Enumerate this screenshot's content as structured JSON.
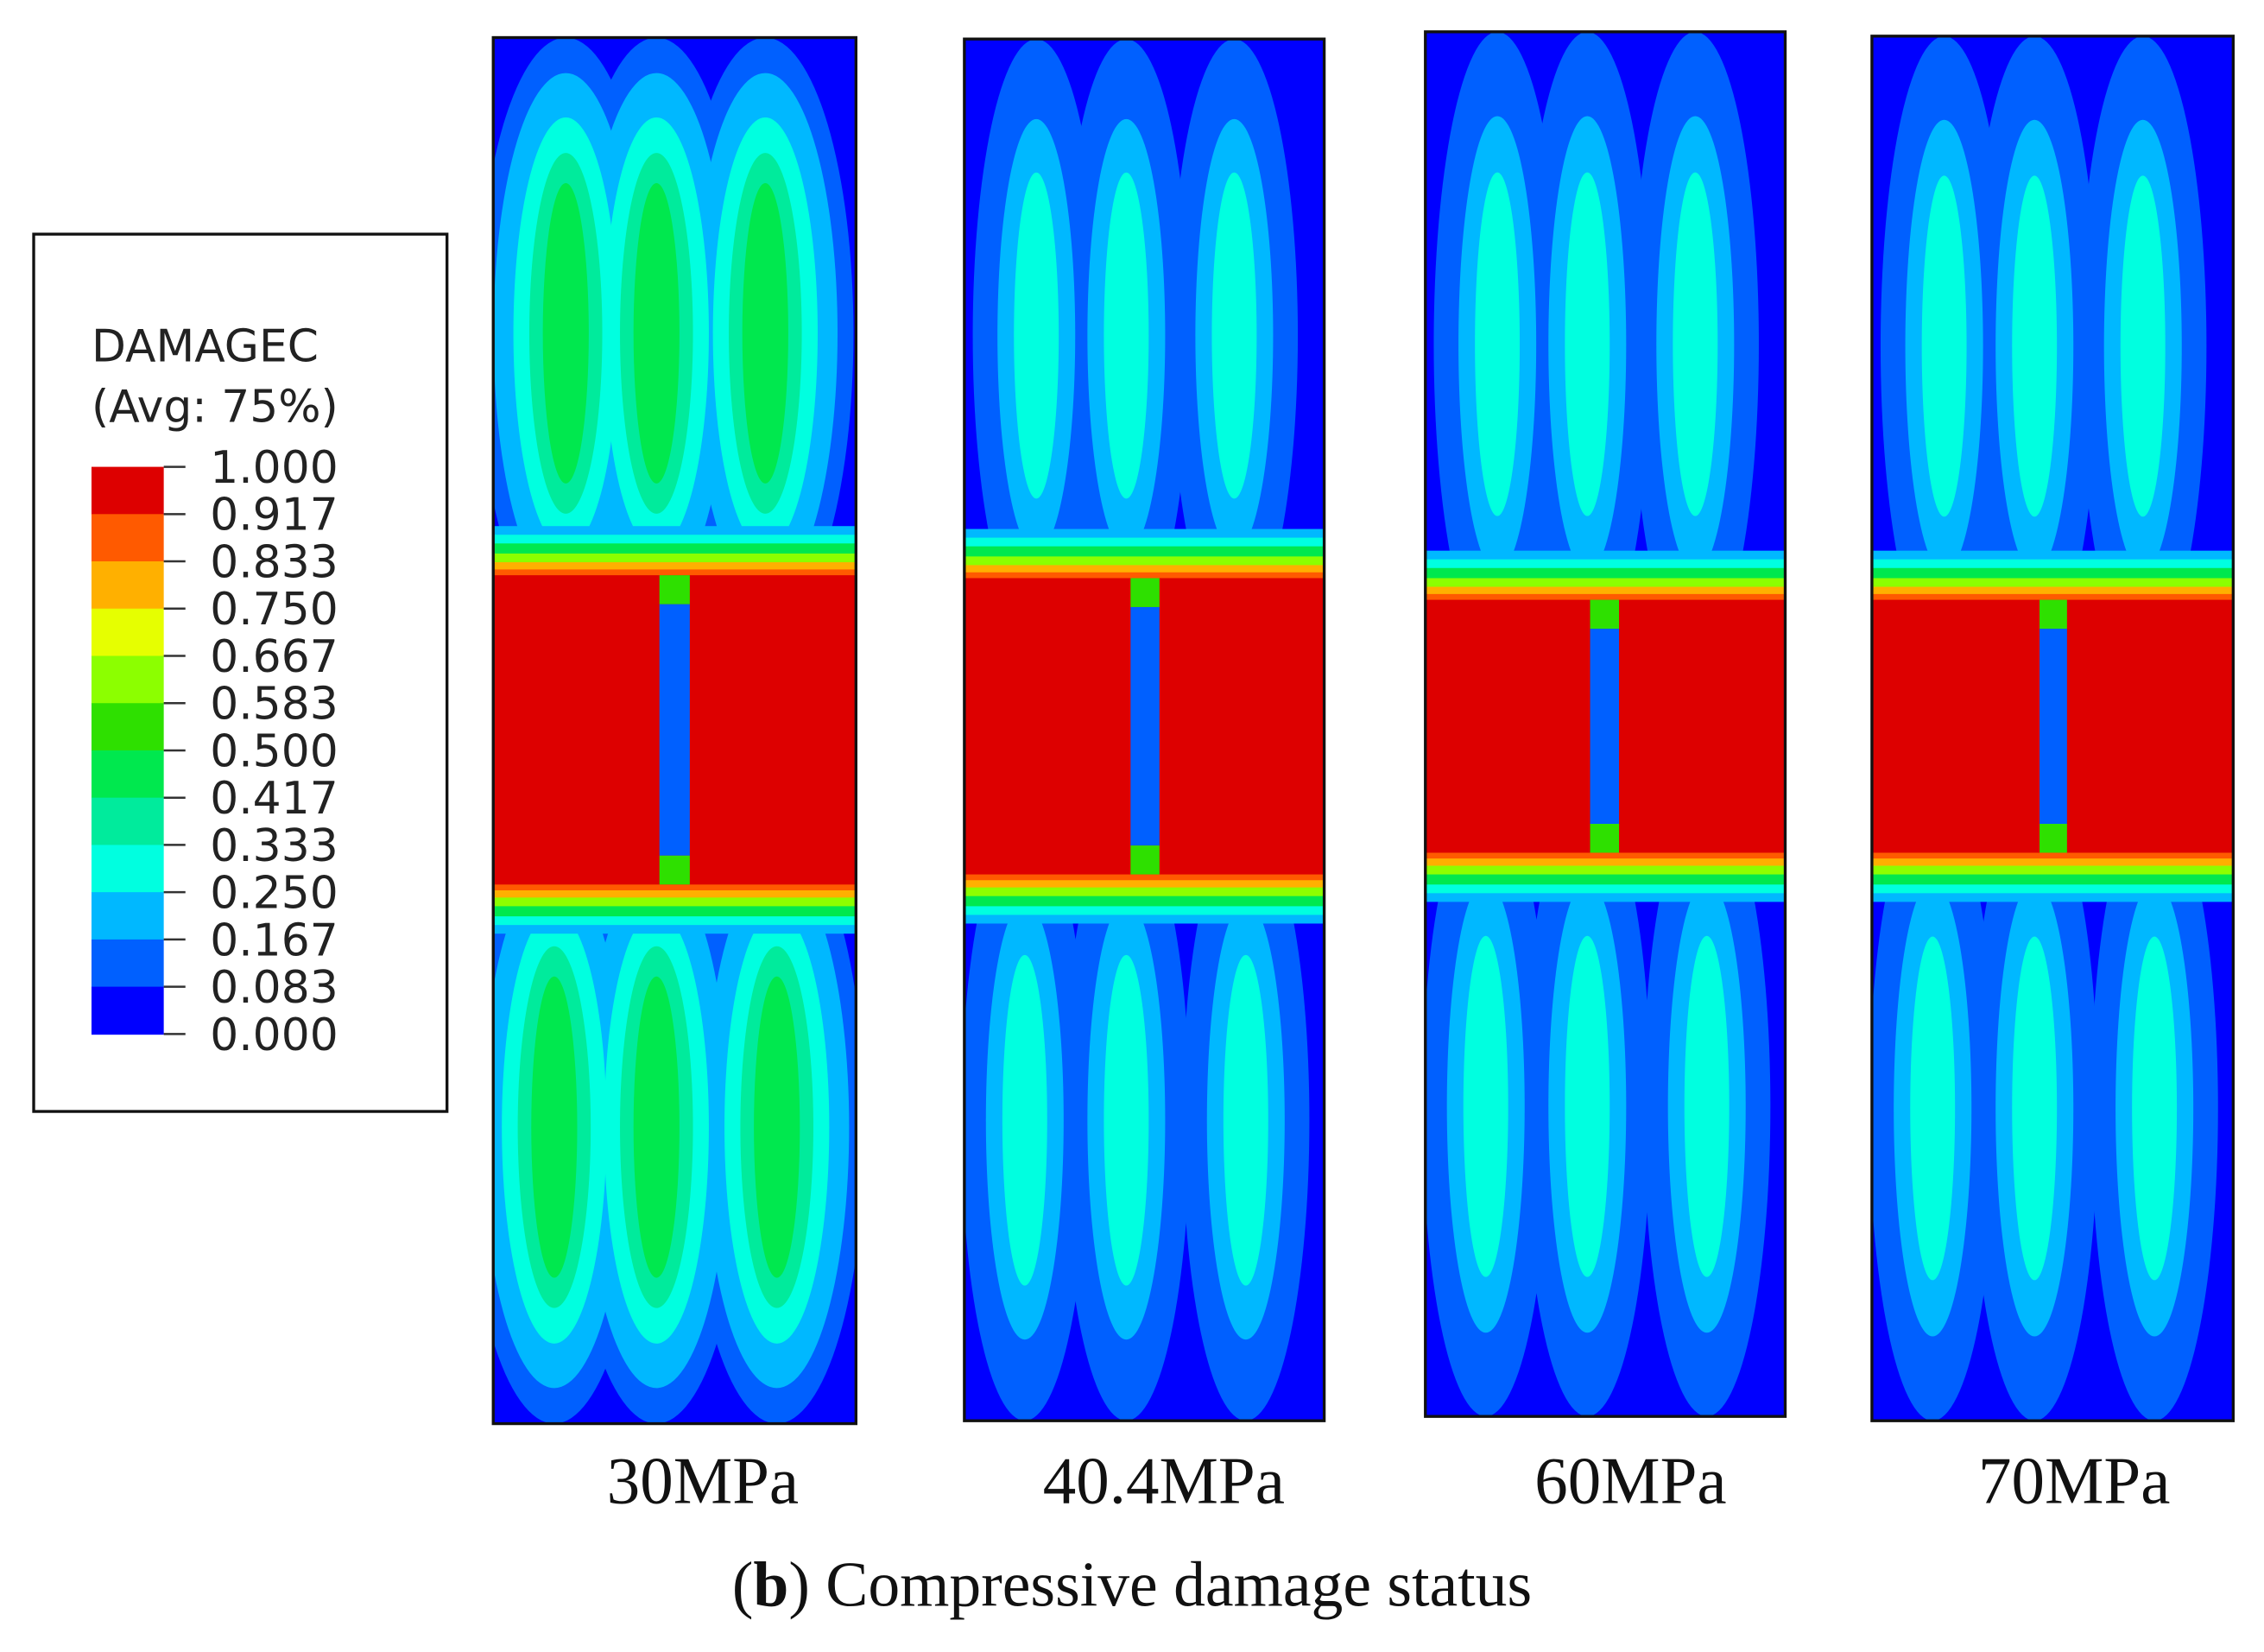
{
  "legend": {
    "title": "DAMAGEC",
    "subtitle": "(Avg: 75%)",
    "levels": [
      "1.000",
      "0.917",
      "0.833",
      "0.750",
      "0.667",
      "0.583",
      "0.500",
      "0.417",
      "0.333",
      "0.250",
      "0.167",
      "0.083",
      "0.000"
    ],
    "colors": [
      "#dd0000",
      "#ff5a00",
      "#ffb000",
      "#e6ff00",
      "#8cff00",
      "#2ee000",
      "#00e84e",
      "#00eb9c",
      "#00ffe0",
      "#00b8ff",
      "#0060ff",
      "#0000ff"
    ]
  },
  "panels": [
    {
      "label": "30MPa"
    },
    {
      "label": "40.4MPa"
    },
    {
      "label": "60MPa"
    },
    {
      "label": "70MPa"
    }
  ],
  "caption": {
    "open": "(",
    "letter": "b",
    "text": ") Compressive damage status"
  }
}
